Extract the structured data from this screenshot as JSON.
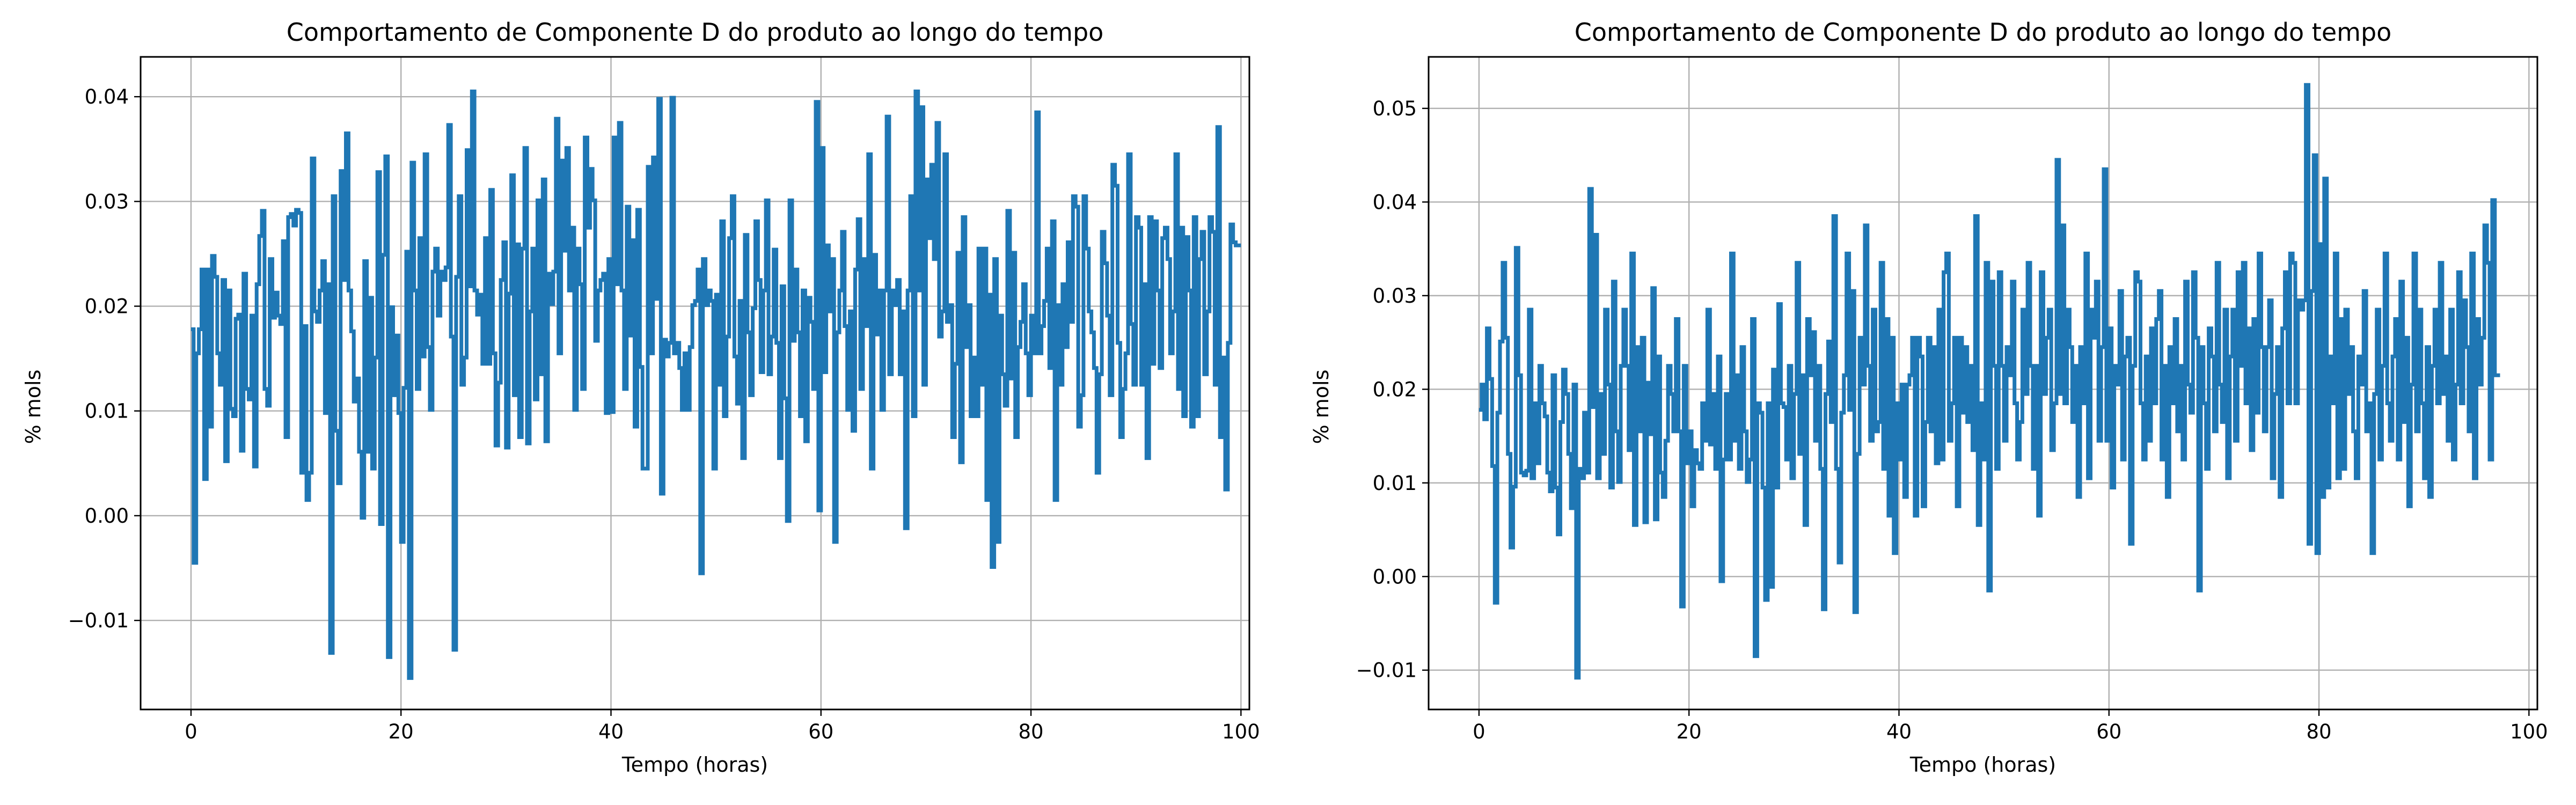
{
  "colors": {
    "line": "#1f77b4",
    "grid": "#b0b0b0",
    "axes": "#000000",
    "background": "#ffffff"
  },
  "chart_data": [
    {
      "type": "line",
      "step": true,
      "grid": true,
      "title": "Comportamento de Componente D do produto ao longo do tempo",
      "xlabel": "Tempo (horas)",
      "ylabel": "% mols",
      "xlim": [
        -4.8,
        100.8
      ],
      "ylim": [
        -0.0185,
        0.0438
      ],
      "xticks": [
        0,
        20,
        40,
        60,
        80,
        100
      ],
      "xtick_labels": [
        "0",
        "20",
        "40",
        "60",
        "80",
        "100"
      ],
      "yticks": [
        -0.01,
        0.0,
        0.01,
        0.02,
        0.03,
        0.04
      ],
      "ytick_labels": [
        "−0.01",
        "0.00",
        "0.01",
        "0.02",
        "0.03",
        "0.04"
      ],
      "series": [
        {
          "x_start": 0,
          "x_step": 0.25,
          "values": [
            0.0178,
            -0.0045,
            0.0155,
            0.0178,
            0.0235,
            0.0035,
            0.0235,
            0.0085,
            0.0248,
            0.0228,
            0.0155,
            0.0125,
            0.0225,
            0.0052,
            0.0215,
            0.0102,
            0.0095,
            0.0188,
            0.0192,
            0.0062,
            0.0231,
            0.0121,
            0.0111,
            0.0191,
            0.0047,
            0.0221,
            0.0267,
            0.0291,
            0.0121,
            0.0105,
            0.0245,
            0.0189,
            0.0213,
            0.0191,
            0.0183,
            0.0262,
            0.0075,
            0.0285,
            0.0288,
            0.0277,
            0.0292,
            0.0289,
            0.0041,
            0.0181,
            0.0015,
            0.0041,
            0.0341,
            0.0195,
            0.0185,
            0.0215,
            0.0243,
            0.0098,
            0.0221,
            -0.0131,
            0.0305,
            0.0081,
            0.0031,
            0.0329,
            0.0225,
            0.0365,
            0.0215,
            0.0176,
            0.0109,
            0.0131,
            0.0061,
            -0.0002,
            0.0243,
            0.0061,
            0.0208,
            0.0045,
            0.0151,
            0.0328,
            -0.0008,
            0.0249,
            0.0343,
            -0.0135,
            0.0199,
            0.0115,
            0.0172,
            0.0098,
            -0.0025,
            0.0122,
            0.0252,
            -0.0155,
            0.0337,
            0.0215,
            0.0121,
            0.0265,
            0.0152,
            0.0345,
            0.0161,
            0.0101,
            0.0233,
            0.0255,
            0.0191,
            0.0233,
            0.0225,
            0.0237,
            0.0373,
            0.0171,
            -0.0128,
            0.0228,
            0.0305,
            0.0125,
            0.0151,
            0.0349,
            0.0219,
            0.0405,
            0.0215,
            0.0192,
            0.0211,
            0.0145,
            0.0265,
            0.0145,
            0.0311,
            0.0155,
            0.0067,
            0.0127,
            0.0225,
            0.0261,
            0.0065,
            0.0212,
            0.0325,
            0.0115,
            0.0259,
            0.0075,
            0.0255,
            0.0351,
            0.0069,
            0.0195,
            0.0255,
            0.0111,
            0.0301,
            0.0135,
            0.0321,
            0.0071,
            0.0231,
            0.0202,
            0.0233,
            0.0379,
            0.0155,
            0.0339,
            0.0253,
            0.0351,
            0.0215,
            0.0275,
            0.0101,
            0.0255,
            0.0221,
            0.0121,
            0.0361,
            0.0275,
            0.0331,
            0.0301,
            0.0167,
            0.0215,
            0.0225,
            0.0231,
            0.0098,
            0.0245,
            0.0099,
            0.0361,
            0.0221,
            0.0375,
            0.0215,
            0.0121,
            0.0295,
            0.0172,
            0.0263,
            0.0085,
            0.0292,
            0.0142,
            0.0045,
            0.0045,
            0.0333,
            0.0155,
            0.0342,
            0.0207,
            0.0398,
            0.0021,
            0.0168,
            0.0152,
            0.0165,
            0.0399,
            0.0155,
            0.0165,
            0.0141,
            0.0101,
            0.0155,
            0.0101,
            0.0161,
            0.0201,
            0.0205,
            0.0235,
            -0.0055,
            0.0245,
            0.0201,
            0.0215,
            0.0205,
            0.0045,
            0.0211,
            0.0125,
            0.0281,
            0.0095,
            0.0171,
            0.0265,
            0.0305,
            0.0152,
            0.0107,
            0.0205,
            0.0055,
            0.0268,
            0.0175,
            0.0115,
            0.0198,
            0.0281,
            0.0225,
            0.0137,
            0.0215,
            0.0301,
            0.0135,
            0.0171,
            0.0254,
            0.0165,
            0.0055,
            0.0219,
            0.0112,
            -0.0005,
            0.0301,
            0.0167,
            0.0235,
            0.0175,
            0.0095,
            0.0215,
            0.0071,
            0.0208,
            0.0185,
            0.0121,
            0.0395,
            0.0005,
            0.0351,
            0.0137,
            0.0258,
            0.0195,
            0.0245,
            -0.0025,
            0.0175,
            0.0215,
            0.0271,
            0.0181,
            0.0101,
            0.0195,
            0.0081,
            0.0235,
            0.0283,
            0.0121,
            0.0245,
            0.0181,
            0.0345,
            0.0045,
            0.0249,
            0.0173,
            0.0215,
            0.0101,
            0.0215,
            0.0381,
            0.0135,
            0.0215,
            0.0201,
            0.0225,
            0.0135,
            0.0195,
            -0.0012,
            0.0215,
            0.0305,
            0.0095,
            0.0405,
            0.0215,
            0.039,
            0.0125,
            0.0321,
            0.0265,
            0.0335,
            0.0245,
            0.0375,
            0.0171,
            0.0195,
            0.0345,
            0.0185,
            0.0201,
            0.0075,
            0.0145,
            0.0251,
            0.0051,
            0.0285,
            0.0161,
            0.0201,
            0.0095,
            0.0151,
            0.0095,
            0.0255,
            0.0125,
            0.0255,
            0.0015,
            0.0211,
            -0.0049,
            0.0245,
            -0.0025,
            0.0191,
            0.0135,
            0.0105,
            0.0291,
            0.0131,
            0.0251,
            0.0075,
            0.0161,
            0.0185,
            0.0221,
            0.0155,
            0.0115,
            0.0191,
            0.0155,
            0.0385,
            0.0155,
            0.0181,
            0.0205,
            0.0255,
            0.0141,
            0.0281,
            0.0015,
            0.0201,
            0.0125,
            0.0221,
            0.0161,
            0.0261,
            0.0185,
            0.0305,
            0.0295,
            0.0085,
            0.0115,
            0.0305,
            0.0255,
            0.0195,
            0.0175,
            0.0141,
            0.0041,
            0.0135,
            0.0271,
            0.0241,
            0.0191,
            0.0115,
            0.0335,
            0.0315,
            0.0165,
            0.0075,
            0.0121,
            0.0155,
            0.0345,
            0.0183,
            0.0125,
            0.0285,
            0.0275,
            0.0125,
            0.0221,
            0.0055,
            0.0285,
            0.0145,
            0.0281,
            0.0215,
            0.0141,
            0.0265,
            0.0275,
            0.0245,
            0.0155,
            0.0195,
            0.0345,
            0.0121,
            0.0275,
            0.0095,
            0.0266,
            0.0215,
            0.0085,
            0.0285,
            0.0095,
            0.0245,
            0.0271,
            0.0135,
            0.0195,
            0.0285,
            0.0271,
            0.0125,
            0.0371,
            0.0075,
            0.0151,
            0.0025,
            0.0165,
            0.0278,
            0.0261,
            0.0258,
            0.0258
          ]
        }
      ]
    },
    {
      "type": "line",
      "step": true,
      "grid": true,
      "title": "Comportamento de Componente D do produto ao longo do tempo",
      "xlabel": "Tempo (horas)",
      "ylabel": "% mols",
      "xlim": [
        -4.8,
        100.8
      ],
      "ylim": [
        -0.0142,
        0.0555
      ],
      "xticks": [
        0,
        20,
        40,
        60,
        80,
        100
      ],
      "xtick_labels": [
        "0",
        "20",
        "40",
        "60",
        "80",
        "100"
      ],
      "yticks": [
        -0.01,
        0.0,
        0.01,
        0.02,
        0.03,
        0.04,
        0.05
      ],
      "ytick_labels": [
        "−0.01",
        "0.00",
        "0.01",
        "0.02",
        "0.03",
        "0.04",
        "0.05"
      ],
      "series": [
        {
          "x_start": 0,
          "x_step": 0.25,
          "values": [
            0.0178,
            0.0205,
            0.0168,
            0.0265,
            0.0211,
            0.0118,
            -0.0028,
            0.0175,
            0.0251,
            0.0335,
            0.0255,
            0.0131,
            0.0031,
            0.0096,
            0.0351,
            0.0215,
            0.0111,
            0.0108,
            0.0113,
            0.0285,
            0.0105,
            0.0185,
            0.0121,
            0.0225,
            0.0185,
            0.0171,
            0.0111,
            0.0091,
            0.0215,
            0.0095,
            0.0045,
            0.0165,
            0.0221,
            0.0195,
            0.0131,
            0.0073,
            0.0205,
            -0.0108,
            0.0115,
            0.0105,
            0.0175,
            0.0111,
            0.0414,
            0.0181,
            0.0365,
            0.0105,
            0.0195,
            0.0131,
            0.0285,
            0.0205,
            0.0095,
            0.0315,
            0.0155,
            0.0101,
            0.0225,
            0.0285,
            0.0225,
            0.0135,
            0.0345,
            0.0055,
            0.0245,
            0.0155,
            0.0255,
            0.0058,
            0.0207,
            0.0152,
            0.0308,
            0.0061,
            0.0235,
            0.0111,
            0.0085,
            0.0145,
            0.0225,
            0.0195,
            0.0155,
            0.0275,
            0.0155,
            -0.0032,
            0.0225,
            0.0121,
            0.0155,
            0.0075,
            0.0135,
            0.0121,
            0.0115,
            0.0185,
            0.0145,
            0.0285,
            0.0141,
            0.0195,
            0.0115,
            0.0235,
            -0.0005,
            0.0125,
            0.0195,
            0.0125,
            0.0345,
            0.0145,
            0.0215,
            0.0115,
            0.0245,
            0.0155,
            0.0101,
            0.0125,
            0.0275,
            -0.0085,
            0.0185,
            0.0175,
            0.0095,
            -0.0025,
            0.0185,
            -0.0011,
            0.0221,
            0.0095,
            0.0291,
            0.0185,
            0.0181,
            0.0125,
            0.0225,
            0.0105,
            0.0195,
            0.0335,
            0.0131,
            0.0215,
            0.0055,
            0.0275,
            0.0215,
            0.0261,
            0.0145,
            0.0225,
            0.0115,
            -0.0035,
            0.0195,
            0.0251,
            0.0165,
            0.0385,
            0.0115,
            0.0015,
            0.0175,
            0.0215,
            0.0345,
            0.0178,
            0.0305,
            -0.0038,
            0.0131,
            0.0255,
            0.0205,
            0.0375,
            0.0225,
            0.0145,
            0.0285,
            0.0155,
            0.0165,
            0.0335,
            0.0115,
            0.0275,
            0.0065,
            0.0255,
            0.0025,
            0.0185,
            0.0125,
            0.0205,
            0.0085,
            0.0205,
            0.0215,
            0.0255,
            0.0065,
            0.0255,
            0.0235,
            0.0075,
            0.0165,
            0.0255,
            0.0155,
            0.0245,
            0.0121,
            0.0285,
            0.0125,
            0.0325,
            0.0345,
            0.0145,
            0.0185,
            0.0255,
            0.0075,
            0.0255,
            0.0175,
            0.0245,
            0.0165,
            0.0225,
            0.0135,
            0.0385,
            0.0055,
            0.0185,
            0.0125,
            0.0335,
            -0.0015,
            0.0315,
            0.0225,
            0.0115,
            0.0325,
            0.0225,
            0.0145,
            0.0245,
            0.0215,
            0.0315,
            0.0185,
            0.0125,
            0.0165,
            0.0285,
            0.0195,
            0.0335,
            0.0225,
            0.0115,
            0.0225,
            0.0065,
            0.0325,
            0.0195,
            0.0255,
            0.0285,
            0.0135,
            0.0185,
            0.0445,
            0.0195,
            0.0375,
            0.0185,
            0.0285,
            0.0245,
            0.0165,
            0.0225,
            0.0085,
            0.0245,
            0.0185,
            0.0345,
            0.0105,
            0.0285,
            0.0255,
            0.0315,
            0.0145,
            0.0245,
            0.0435,
            0.0145,
            0.0265,
            0.0095,
            0.0225,
            0.0205,
            0.0305,
            0.0125,
            0.0235,
            0.0255,
            0.0035,
            0.0225,
            0.0325,
            0.0315,
            0.0185,
            0.0125,
            0.0235,
            0.0145,
            0.0265,
            0.0185,
            0.0275,
            0.0305,
            0.0125,
            0.0225,
            0.0085,
            0.0245,
            0.0185,
            0.0275,
            0.0155,
            0.0225,
            0.0125,
            0.0315,
            0.0205,
            0.0175,
            0.0325,
            0.0255,
            -0.0015,
            0.0245,
            0.0185,
            0.0115,
            0.0265,
            0.0235,
            0.0155,
            0.0335,
            0.0205,
            0.0165,
            0.0285,
            0.0105,
            0.0235,
            0.0285,
            0.0145,
            0.0325,
            0.0225,
            0.0335,
            0.0185,
            0.0265,
            0.0135,
            0.0275,
            0.0175,
            0.0345,
            0.0245,
            0.0155,
            0.0245,
            0.0295,
            0.0105,
            0.0195,
            0.0245,
            0.0085,
            0.0265,
            0.0325,
            0.0185,
            0.0345,
            0.0335,
            0.0185,
            0.0295,
            0.0285,
            0.0295,
            0.0525,
            0.0035,
            0.0305,
            0.045,
            0.0025,
            0.0355,
            0.0085,
            0.0425,
            0.0095,
            0.0235,
            0.0185,
            0.0345,
            0.0105,
            0.0275,
            0.0115,
            0.0285,
            0.0195,
            0.0245,
            0.0155,
            0.0105,
            0.0235,
            0.0205,
            0.0305,
            0.0155,
            0.0185,
            0.0025,
            0.0195,
            0.0285,
            0.0125,
            0.0225,
            0.0345,
            0.0185,
            0.0145,
            0.0235,
            0.0275,
            0.0125,
            0.0315,
            0.0165,
            0.0255,
            0.0075,
            0.0205,
            0.0345,
            0.0155,
            0.0285,
            0.0185,
            0.0105,
            0.0245,
            0.0085,
            0.0225,
            0.0285,
            0.0185,
            0.0335,
            0.0195,
            0.0235,
            0.0145,
            0.0285,
            0.0125,
            0.0205,
            0.0325,
            0.0185,
            0.0295,
            0.0245,
            0.0155,
            0.0345,
            0.0105,
            0.0275,
            0.0205,
            0.0255,
            0.0375,
            0.0335,
            0.0125,
            0.0402,
            0.0215,
            0.0215
          ]
        }
      ]
    }
  ]
}
